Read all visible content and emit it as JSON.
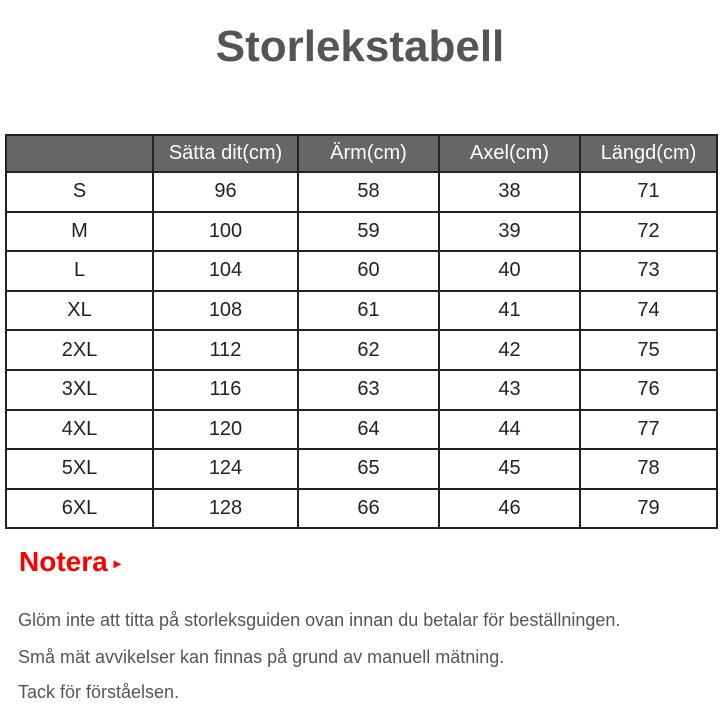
{
  "title": "Storlekstabell",
  "table": {
    "headers": [
      "",
      "Sätta dit(cm)",
      "Ärm(cm)",
      "Axel(cm)",
      "Längd(cm)"
    ],
    "rows": [
      [
        "S",
        "96",
        "58",
        "38",
        "71"
      ],
      [
        "M",
        "100",
        "59",
        "39",
        "72"
      ],
      [
        "L",
        "104",
        "60",
        "40",
        "73"
      ],
      [
        "XL",
        "108",
        "61",
        "41",
        "74"
      ],
      [
        "2XL",
        "112",
        "62",
        "42",
        "75"
      ],
      [
        "3XL",
        "116",
        "63",
        "43",
        "76"
      ],
      [
        "4XL",
        "120",
        "64",
        "44",
        "77"
      ],
      [
        "5XL",
        "124",
        "65",
        "45",
        "78"
      ],
      [
        "6XL",
        "128",
        "66",
        "46",
        "79"
      ]
    ]
  },
  "note": {
    "heading": "Notera",
    "arrow": "▸",
    "lines": [
      "Glöm inte att titta på storleksguiden ovan innan du betalar för beställningen.",
      "Små mät avvikelser kan finnas på grund av manuell mätning.",
      "Tack för förståelsen."
    ]
  }
}
